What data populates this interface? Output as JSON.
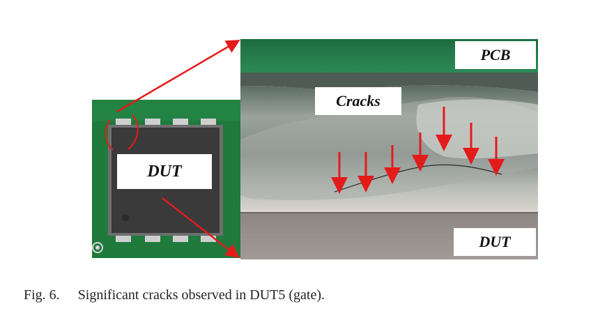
{
  "figure": {
    "labels": {
      "pcb": "PCB",
      "cracks": "Cracks",
      "dut_package": "DUT",
      "dut_micrograph": "DUT"
    },
    "caption": {
      "number": "Fig. 6.",
      "text": "Significant cracks observed in DUT5 (gate)."
    }
  },
  "colors": {
    "pcb_green": "#1f7a3c",
    "package_body": "#3a3a3a",
    "arrow_red": "#e31b1b"
  }
}
